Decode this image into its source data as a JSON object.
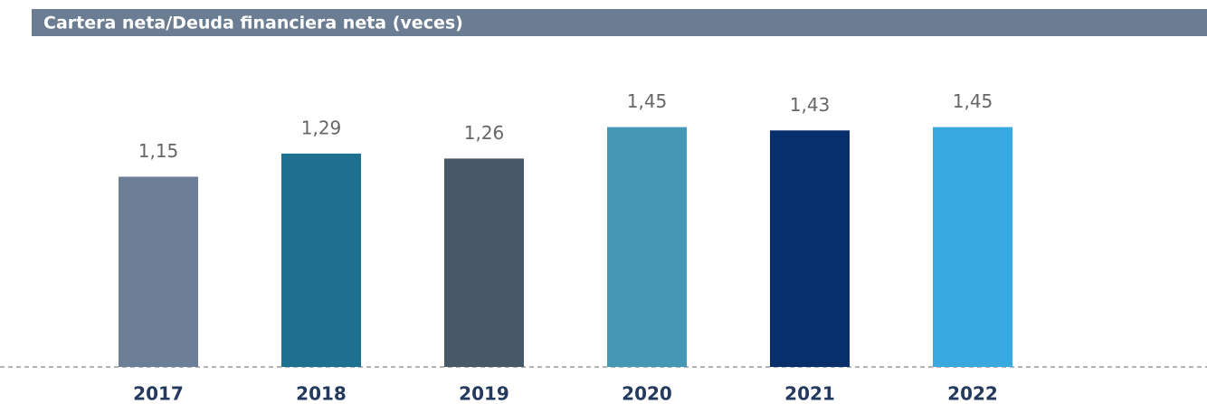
{
  "chart_data": {
    "type": "bar",
    "title": "Cartera neta/Deuda financiera neta (veces)",
    "categories": [
      "2017",
      "2018",
      "2019",
      "2020",
      "2021",
      "2022"
    ],
    "values": [
      1.15,
      1.29,
      1.26,
      1.45,
      1.43,
      1.45
    ],
    "value_labels": [
      "1,15",
      "1,29",
      "1,26",
      "1,45",
      "1,43",
      "1,45"
    ],
    "colors": [
      "#6c7f96",
      "#1e7090",
      "#495866",
      "#4498b5",
      "#062f6b",
      "#38a8e0"
    ],
    "ylim": [
      0,
      2
    ]
  }
}
